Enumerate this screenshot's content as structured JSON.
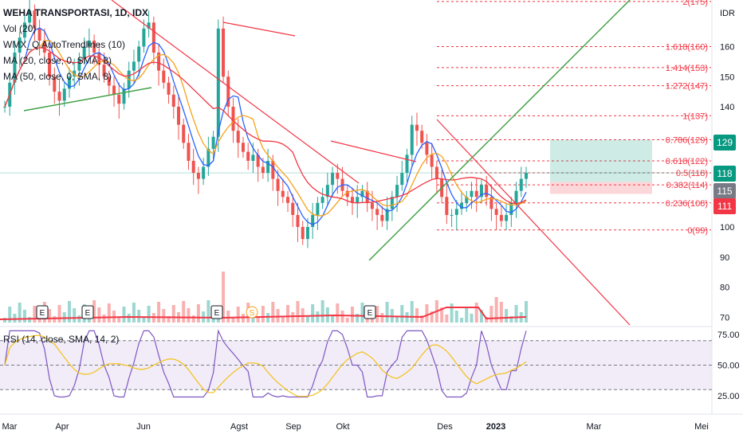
{
  "legend": {
    "title": "WEHA TRANSPORTASI, 1D, IDX",
    "vol": "Vol (20)",
    "wmx": "WMX_Q AutoTrendlines (10)",
    "ma20": "MA (20, close, 0, SMA, 8)",
    "ma50": "MA (50, close, 0, SMA, 8)",
    "rsi": "RSI (14, close, SMA, 14, 2)"
  },
  "currency": "IDR",
  "price_badges": [
    {
      "label": "129",
      "color": "#089981"
    },
    {
      "label": "118",
      "color": "#089981"
    },
    {
      "label": "115",
      "color": "#787b86"
    },
    {
      "label": "111",
      "color": "#f23645"
    }
  ],
  "colors": {
    "up": "#26a69a",
    "down": "#ef5350",
    "ma20": "#2962ff",
    "ma50": "#f7a21b",
    "ma_red": "#f23645",
    "trend_green": "#43a047",
    "trend_red": "#f23645",
    "fib": "#f23645",
    "rsi": "#7e57c2",
    "rsi_ma": "#f3c117",
    "rsi_band": "#ede7f6",
    "vol_ma": "#f23645"
  },
  "chart_data": [
    {
      "type": "candlestick",
      "title": "WEHA TRANSPORTASI, 1D, IDX",
      "y_unit": "IDR",
      "y_ticks": [
        70,
        80,
        90,
        100,
        110,
        120,
        130,
        140,
        150,
        160,
        170
      ],
      "y_tick_labels": [
        "70",
        "80",
        "90",
        "100",
        "",
        "",
        "",
        "140",
        "150",
        "160",
        "IDR"
      ],
      "x_ticks": [
        "Mar",
        "Apr",
        "Jun",
        "Agst",
        "Sep",
        "Okt",
        "Des",
        "2023",
        "Mar",
        "Mei"
      ],
      "series": [
        {
          "name": "MA (20, close, 0, SMA, 8)",
          "type": "line"
        },
        {
          "name": "MA (50, close, 0, SMA, 8)",
          "type": "line"
        }
      ],
      "ohlc_path_close": [
        140,
        148,
        158,
        163,
        168,
        172,
        166,
        162,
        158,
        150,
        145,
        142,
        146,
        150,
        152,
        156,
        160,
        162,
        158,
        154,
        150,
        147,
        144,
        141,
        146,
        152,
        155,
        160,
        166,
        168,
        158,
        152,
        148,
        144,
        140,
        134,
        128,
        122,
        118,
        116,
        120,
        126,
        130,
        166,
        150,
        140,
        132,
        128,
        125,
        122,
        124,
        120,
        118,
        122,
        116,
        112,
        110,
        108,
        104,
        100,
        96,
        100,
        104,
        108,
        110,
        114,
        118,
        116,
        112,
        110,
        108,
        110,
        112,
        108,
        106,
        104,
        102,
        106,
        110,
        114,
        118,
        124,
        134,
        132,
        128,
        124,
        120,
        116,
        110,
        104,
        104,
        106,
        108,
        110,
        112,
        110,
        114,
        110,
        106,
        104,
        102,
        104,
        108,
        112,
        116,
        118
      ],
      "fibonacci": [
        {
          "label": "2(175)",
          "value": 175
        },
        {
          "label": "1.618(160)",
          "value": 160
        },
        {
          "label": "1.414(153)",
          "value": 153
        },
        {
          "label": "1.272(147)",
          "value": 147
        },
        {
          "label": "1(137)",
          "value": 137
        },
        {
          "label": "0.786(129)",
          "value": 129
        },
        {
          "label": "0.618(122)",
          "value": 122
        },
        {
          "label": "0.5(118)",
          "value": 118
        },
        {
          "label": "0.382(114)",
          "value": 114
        },
        {
          "label": "0.236(108)",
          "value": 108
        },
        {
          "label": "0(99)",
          "value": 99
        }
      ],
      "position_tool": {
        "target": 129,
        "entry": 115,
        "stop": 111,
        "current": 118
      },
      "earnings_markers": [
        "E",
        "E",
        "E",
        "S",
        "E"
      ]
    },
    {
      "type": "line",
      "title": "RSI (14, close, SMA, 14, 2)",
      "y_ticks": [
        25,
        50,
        75
      ],
      "y_tick_labels": [
        "25.00",
        "50.00",
        "75.00"
      ],
      "levels": [
        30,
        50,
        70
      ]
    }
  ]
}
